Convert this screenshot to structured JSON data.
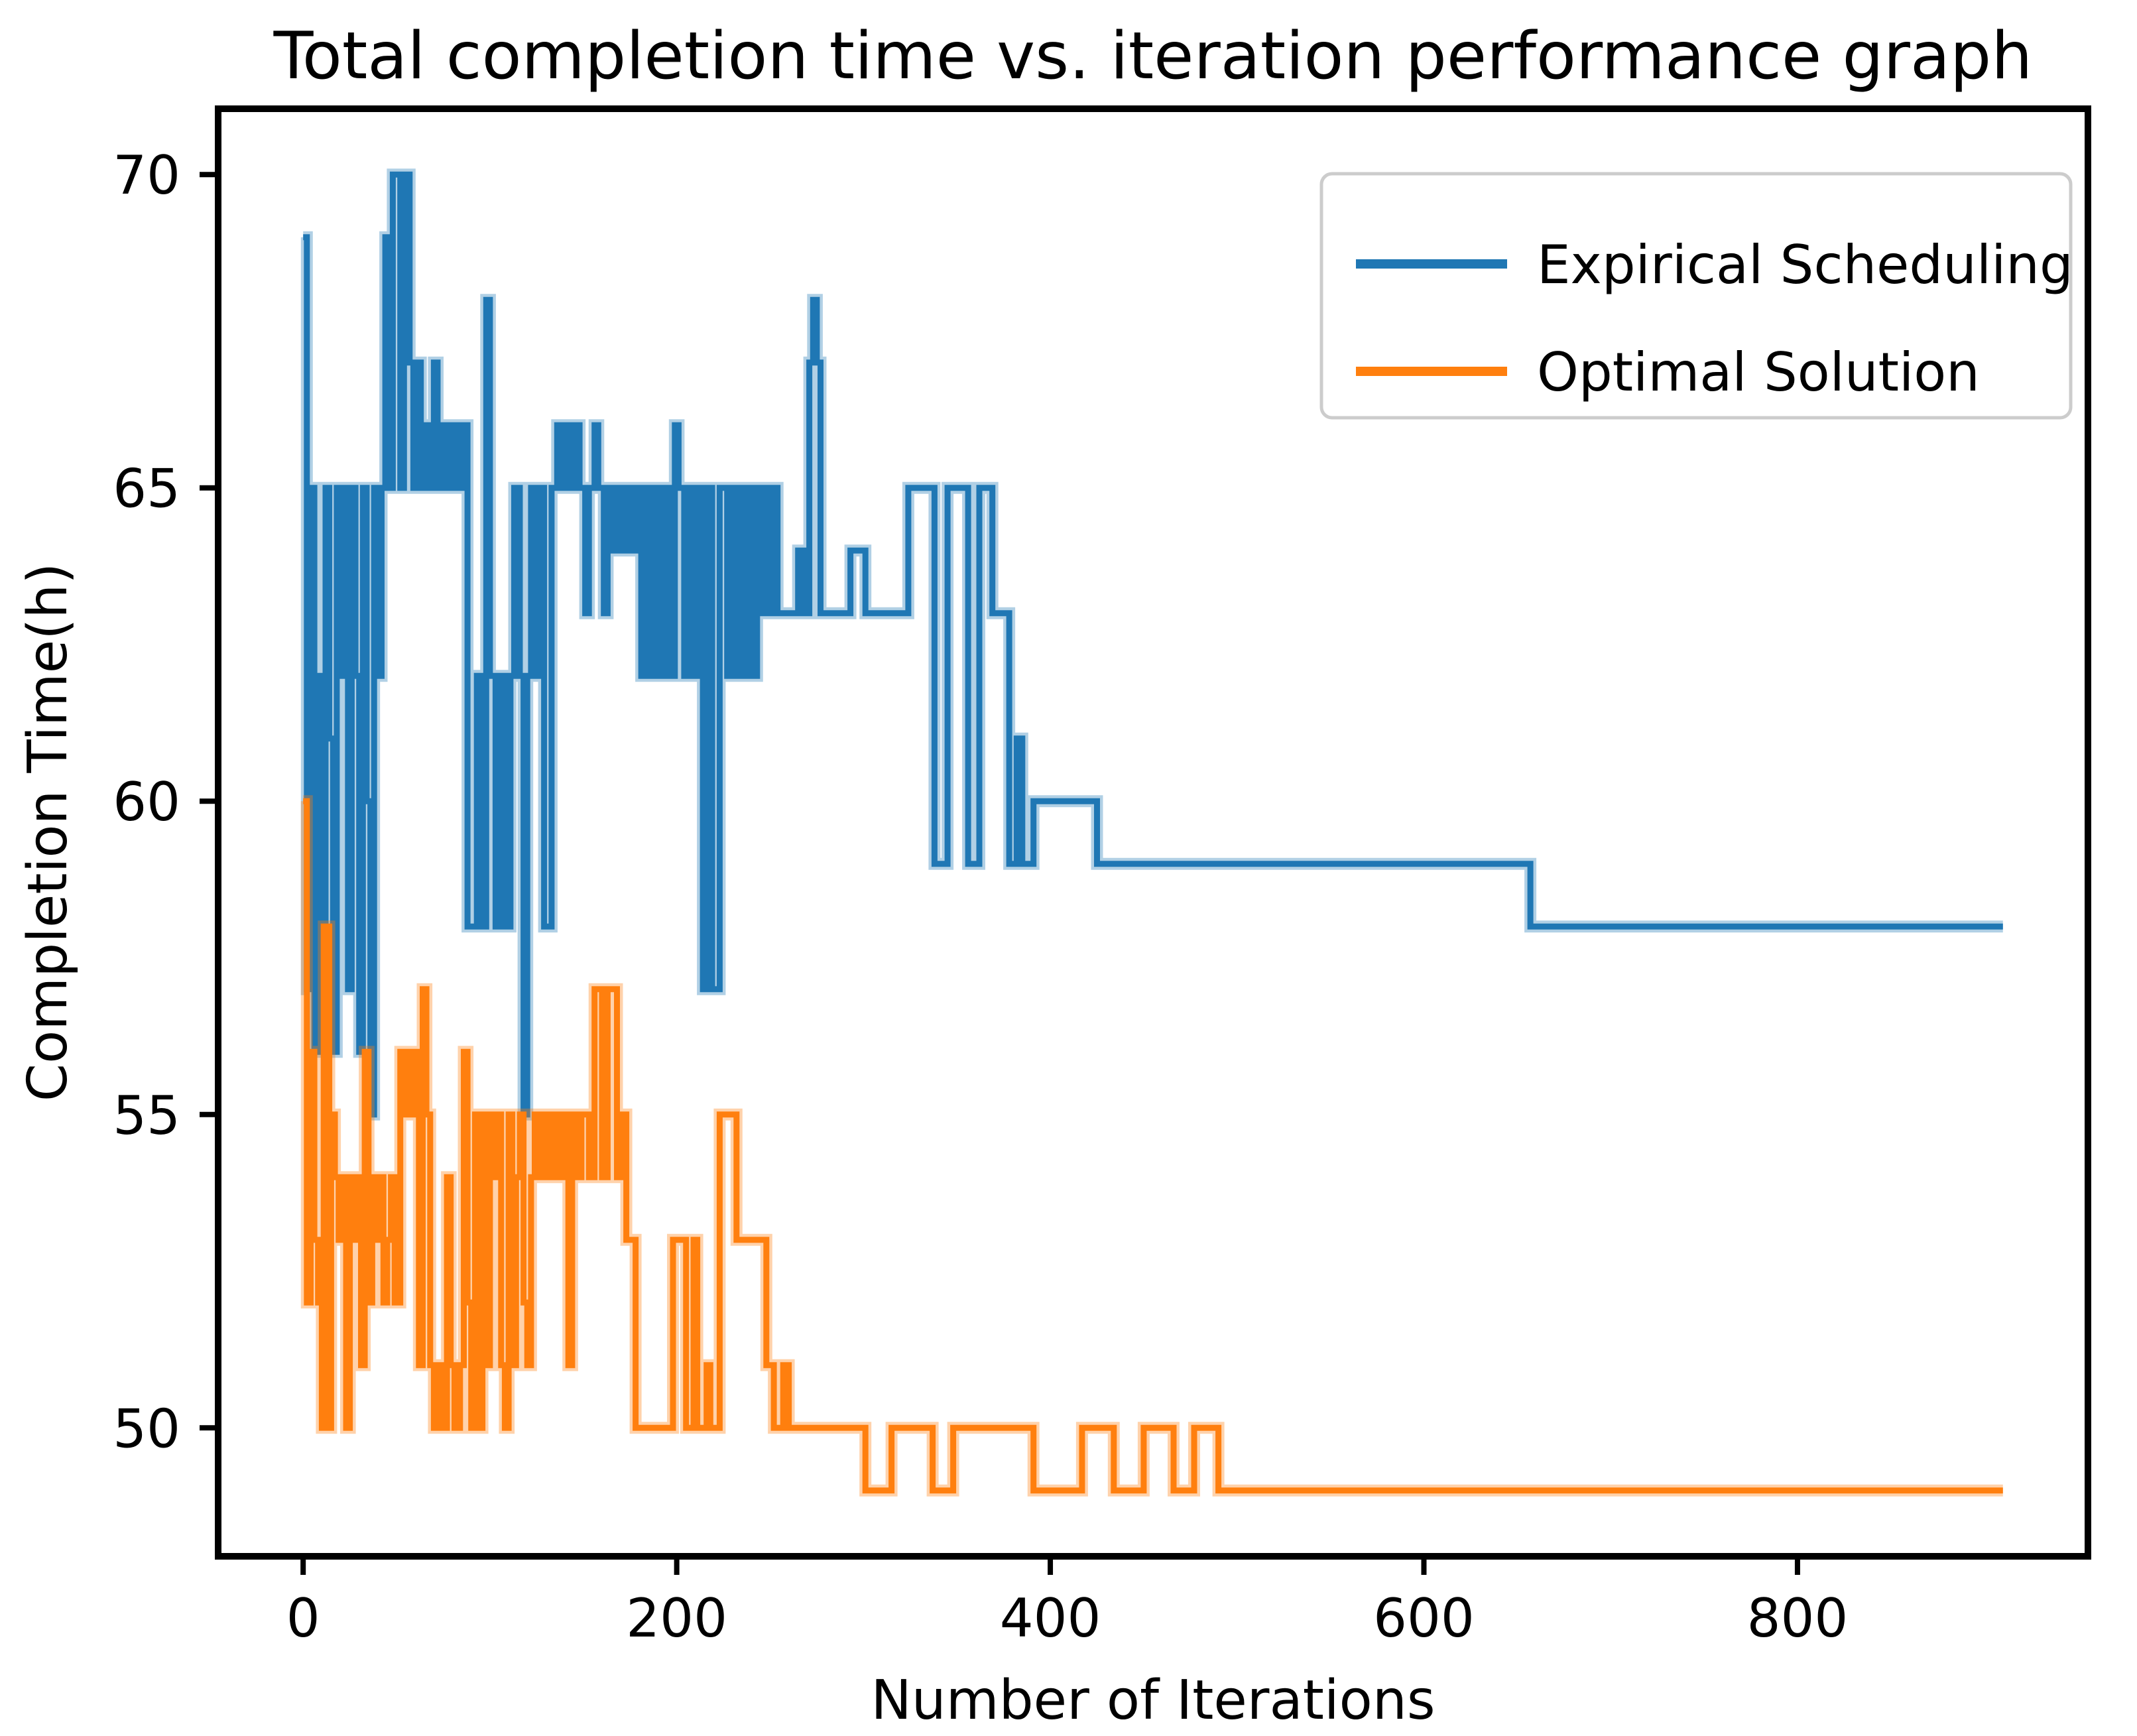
{
  "figure": {
    "title": "Total completion time vs. iteration performance graph",
    "xlabel": "Number of Iterations",
    "ylabel": "Completion Time(h)"
  },
  "colors": {
    "series_blue": "#1f77b4",
    "series_orange": "#ff7f0e",
    "spine": "#000000",
    "legend_border": "#cccccc",
    "legend_bg": "#ffffff",
    "text": "#000000"
  },
  "chart_data": {
    "type": "line",
    "step_mode": "post",
    "title": "Total completion time vs. iteration performance graph",
    "xlabel": "Number of Iterations",
    "ylabel": "Completion Time(h)",
    "xlim": [
      -45.5,
      955.5
    ],
    "ylim": [
      47.95,
      71.05
    ],
    "xticks": [
      0,
      200,
      400,
      600,
      800
    ],
    "yticks": [
      50,
      55,
      60,
      65,
      70
    ],
    "grid": false,
    "legend": {
      "position": "upper right",
      "entries": [
        "Expirical Scheduling",
        "Optimal Solution"
      ]
    },
    "series": [
      {
        "name": "Expirical Scheduling",
        "color": "#1f77b4",
        "points": [
          [
            0,
            69
          ],
          [
            2,
            57
          ],
          [
            4,
            65
          ],
          [
            6,
            56
          ],
          [
            8,
            62
          ],
          [
            10,
            58
          ],
          [
            12,
            65
          ],
          [
            14,
            61
          ],
          [
            16,
            56
          ],
          [
            18,
            65
          ],
          [
            20,
            62
          ],
          [
            22,
            65
          ],
          [
            24,
            57
          ],
          [
            26,
            65
          ],
          [
            28,
            62
          ],
          [
            30,
            56
          ],
          [
            32,
            65
          ],
          [
            34,
            60
          ],
          [
            36,
            55
          ],
          [
            38,
            65
          ],
          [
            40,
            62
          ],
          [
            42,
            65
          ],
          [
            44,
            69
          ],
          [
            46,
            65
          ],
          [
            48,
            70
          ],
          [
            52,
            65
          ],
          [
            54,
            70
          ],
          [
            57,
            67
          ],
          [
            59,
            65
          ],
          [
            61,
            67
          ],
          [
            63,
            65
          ],
          [
            65,
            66
          ],
          [
            68,
            65
          ],
          [
            70,
            67
          ],
          [
            72,
            65
          ],
          [
            74,
            66
          ],
          [
            77,
            65
          ],
          [
            80,
            66
          ],
          [
            83,
            65
          ],
          [
            86,
            66
          ],
          [
            88,
            58
          ],
          [
            93,
            62
          ],
          [
            96,
            58
          ],
          [
            98,
            68
          ],
          [
            100,
            62
          ],
          [
            103,
            58
          ],
          [
            106,
            62
          ],
          [
            109,
            58
          ],
          [
            111,
            62
          ],
          [
            113,
            65
          ],
          [
            116,
            62
          ],
          [
            118,
            55
          ],
          [
            120,
            62
          ],
          [
            122,
            65
          ],
          [
            124,
            62
          ],
          [
            127,
            65
          ],
          [
            129,
            58
          ],
          [
            133,
            65
          ],
          [
            136,
            66
          ],
          [
            138,
            65
          ],
          [
            141,
            66
          ],
          [
            143,
            65
          ],
          [
            146,
            66
          ],
          [
            148,
            65
          ],
          [
            151,
            63
          ],
          [
            153,
            65
          ],
          [
            156,
            66
          ],
          [
            158,
            65
          ],
          [
            161,
            63
          ],
          [
            163,
            65
          ],
          [
            166,
            64
          ],
          [
            168,
            65
          ],
          [
            171,
            64
          ],
          [
            173,
            65
          ],
          [
            176,
            64
          ],
          [
            178,
            65
          ],
          [
            181,
            62
          ],
          [
            184,
            65
          ],
          [
            187,
            62
          ],
          [
            189,
            65
          ],
          [
            192,
            62
          ],
          [
            194,
            65
          ],
          [
            197,
            62
          ],
          [
            199,
            66
          ],
          [
            201,
            65
          ],
          [
            204,
            62
          ],
          [
            206,
            65
          ],
          [
            209,
            62
          ],
          [
            212,
            65
          ],
          [
            214,
            57
          ],
          [
            217,
            65
          ],
          [
            219,
            57
          ],
          [
            223,
            65
          ],
          [
            227,
            62
          ],
          [
            229,
            65
          ],
          [
            231,
            62
          ],
          [
            234,
            65
          ],
          [
            236,
            62
          ],
          [
            238,
            65
          ],
          [
            240,
            62
          ],
          [
            243,
            65
          ],
          [
            245,
            63
          ],
          [
            247,
            65
          ],
          [
            249,
            63
          ],
          [
            252,
            65
          ],
          [
            254,
            63
          ],
          [
            265,
            64
          ],
          [
            268,
            63
          ],
          [
            271,
            67
          ],
          [
            273,
            68
          ],
          [
            275,
            67
          ],
          [
            277,
            63
          ],
          [
            293,
            64
          ],
          [
            301,
            63
          ],
          [
            324,
            65
          ],
          [
            338,
            59
          ],
          [
            345,
            65
          ],
          [
            356,
            59
          ],
          [
            362,
            65
          ],
          [
            369,
            63
          ],
          [
            378,
            59
          ],
          [
            382,
            61
          ],
          [
            385,
            59
          ],
          [
            391,
            60
          ],
          [
            425,
            59
          ],
          [
            657,
            58
          ],
          [
            910,
            58
          ]
        ]
      },
      {
        "name": "Optimal Solution",
        "color": "#ff7f0e",
        "points": [
          [
            0,
            60
          ],
          [
            2,
            52
          ],
          [
            4,
            56
          ],
          [
            6,
            53
          ],
          [
            8,
            52
          ],
          [
            10,
            50
          ],
          [
            11,
            58
          ],
          [
            14,
            50
          ],
          [
            15,
            55
          ],
          [
            17,
            54
          ],
          [
            19,
            53
          ],
          [
            21,
            54
          ],
          [
            23,
            50
          ],
          [
            25,
            54
          ],
          [
            27,
            53
          ],
          [
            29,
            54
          ],
          [
            31,
            51
          ],
          [
            33,
            56
          ],
          [
            35,
            52
          ],
          [
            37,
            54
          ],
          [
            39,
            53
          ],
          [
            41,
            54
          ],
          [
            43,
            52
          ],
          [
            45,
            53
          ],
          [
            47,
            54
          ],
          [
            49,
            52
          ],
          [
            52,
            56
          ],
          [
            54,
            55
          ],
          [
            56,
            56
          ],
          [
            58,
            55
          ],
          [
            60,
            56
          ],
          [
            62,
            51
          ],
          [
            64,
            57
          ],
          [
            66,
            55
          ],
          [
            68,
            51
          ],
          [
            70,
            50
          ],
          [
            72,
            51
          ],
          [
            75,
            50
          ],
          [
            77,
            54
          ],
          [
            79,
            51
          ],
          [
            81,
            50
          ],
          [
            84,
            51
          ],
          [
            86,
            56
          ],
          [
            88,
            52
          ],
          [
            90,
            50
          ],
          [
            92,
            55
          ],
          [
            94,
            50
          ],
          [
            96,
            55
          ],
          [
            98,
            51
          ],
          [
            100,
            55
          ],
          [
            102,
            54
          ],
          [
            104,
            55
          ],
          [
            106,
            51
          ],
          [
            108,
            50
          ],
          [
            110,
            55
          ],
          [
            112,
            51
          ],
          [
            114,
            54
          ],
          [
            116,
            55
          ],
          [
            118,
            52
          ],
          [
            120,
            51
          ],
          [
            122,
            54
          ],
          [
            124,
            55
          ],
          [
            126,
            54
          ],
          [
            129,
            55
          ],
          [
            132,
            54
          ],
          [
            134,
            55
          ],
          [
            137,
            54
          ],
          [
            140,
            55
          ],
          [
            142,
            51
          ],
          [
            144,
            55
          ],
          [
            147,
            54
          ],
          [
            149,
            55
          ],
          [
            153,
            54
          ],
          [
            156,
            57
          ],
          [
            160,
            54
          ],
          [
            163,
            57
          ],
          [
            168,
            54
          ],
          [
            170,
            55
          ],
          [
            173,
            53
          ],
          [
            178,
            50
          ],
          [
            198,
            53
          ],
          [
            205,
            50
          ],
          [
            209,
            53
          ],
          [
            211,
            50
          ],
          [
            216,
            51
          ],
          [
            218,
            50
          ],
          [
            223,
            55
          ],
          [
            232,
            53
          ],
          [
            248,
            51
          ],
          [
            252,
            50
          ],
          [
            257,
            51
          ],
          [
            260,
            50
          ],
          [
            301,
            49
          ],
          [
            315,
            50
          ],
          [
            337,
            49
          ],
          [
            348,
            50
          ],
          [
            391,
            49
          ],
          [
            417,
            50
          ],
          [
            434,
            49
          ],
          [
            450,
            50
          ],
          [
            466,
            49
          ],
          [
            477,
            50
          ],
          [
            490,
            49
          ],
          [
            910,
            49
          ]
        ]
      }
    ]
  }
}
